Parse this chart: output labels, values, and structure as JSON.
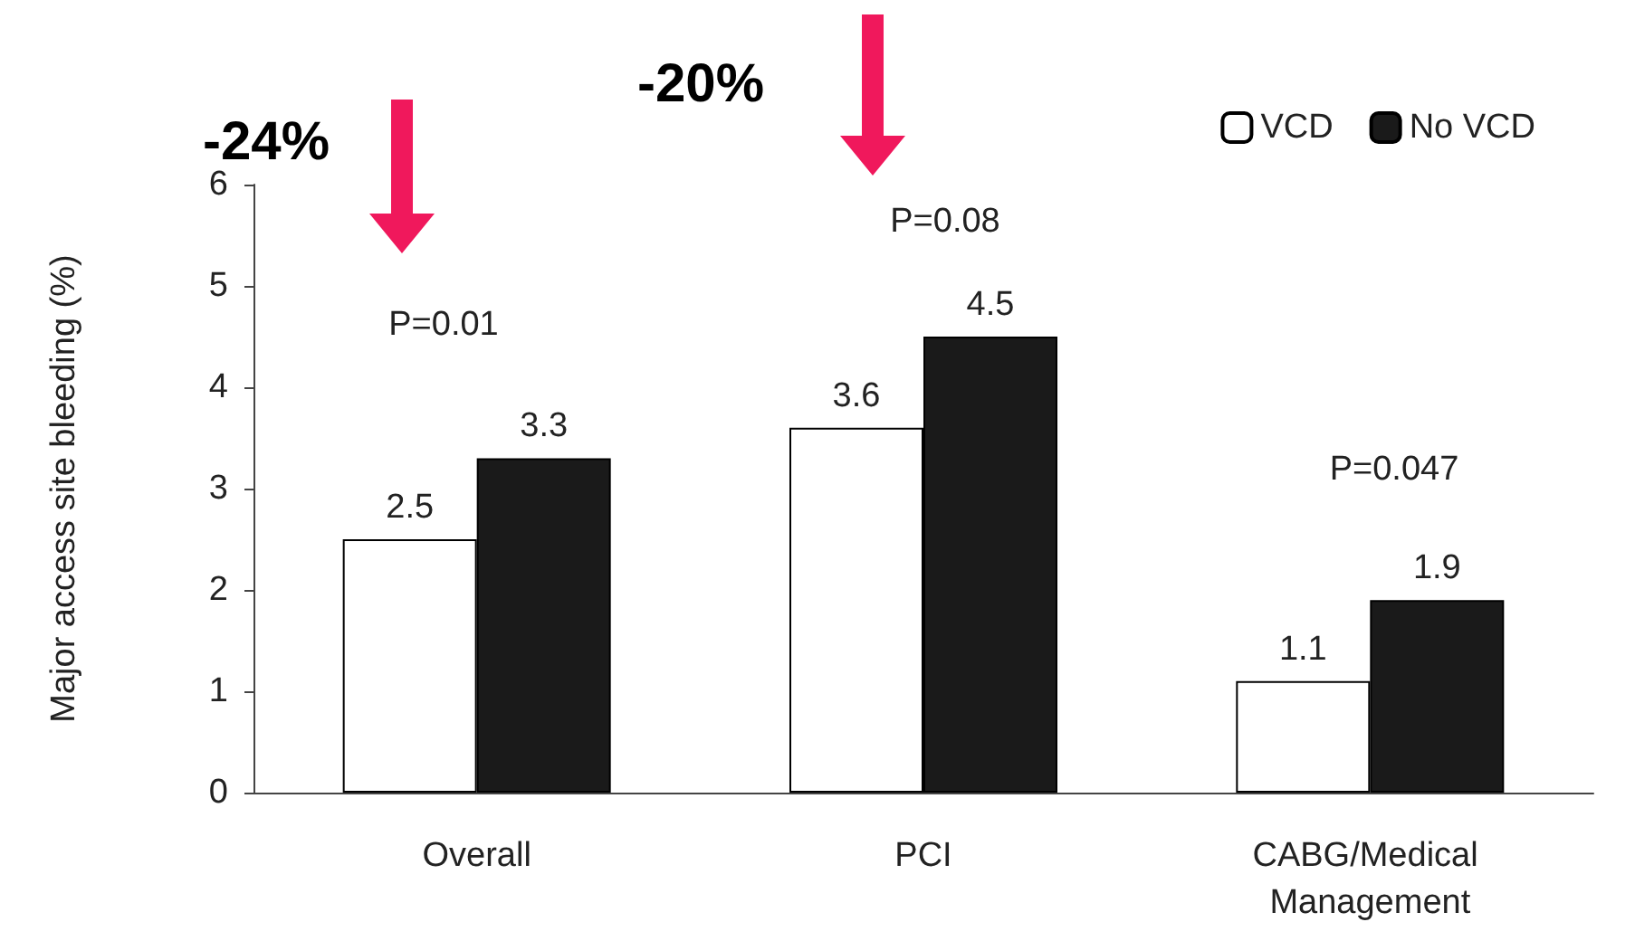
{
  "chart_data": {
    "type": "bar",
    "ylabel": "Major access site bleeding (%)",
    "categories": [
      "Overall",
      "PCI",
      "CABG/Medical Management"
    ],
    "series": [
      {
        "name": "VCD",
        "color": "#ffffff",
        "values": [
          2.5,
          3.6,
          1.1
        ]
      },
      {
        "name": "No VCD",
        "color": "#1a1a1a",
        "values": [
          3.3,
          4.5,
          1.9
        ]
      }
    ],
    "ylim": [
      0,
      6
    ],
    "yticks": [
      0,
      1,
      2,
      3,
      4,
      5,
      6
    ],
    "grid": false,
    "legend": "top right",
    "data_labels": true,
    "annotations": [
      "-24%",
      "-20%",
      "P=0.01",
      "P=0.08",
      "P=0.047"
    ]
  }
}
